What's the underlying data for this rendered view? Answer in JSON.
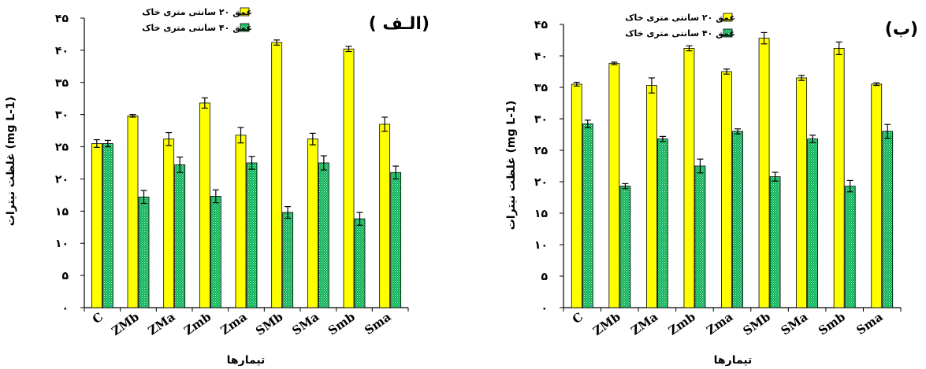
{
  "chart_data": [
    {
      "type": "bar",
      "title": "( الـف)",
      "xlabel": "تیمارها",
      "ylabel": "غلظت نیترات (mg L-1)",
      "ylim": [
        0,
        45
      ],
      "yticks": [
        "۰",
        "۵",
        "۱۰",
        "۱۵",
        "۲۰",
        "۲۵",
        "۳۰",
        "۳۵",
        "۴۰",
        "۴۵"
      ],
      "grid": false,
      "legend_position": "top",
      "categories": [
        "C",
        "ZMb",
        "ZMa",
        "Zmb",
        "Zma",
        "SMb",
        "SMa",
        "Smb",
        "Sma"
      ],
      "series": [
        {
          "name": "عمق ۲۰ سانتی متری خاک",
          "color": "#ffff00",
          "values": [
            25.5,
            29.8,
            26.2,
            31.8,
            26.8,
            41.2,
            26.2,
            40.2,
            28.5
          ],
          "errors": [
            0.6,
            0.2,
            1.0,
            0.8,
            1.2,
            0.4,
            0.9,
            0.4,
            1.1
          ]
        },
        {
          "name": "عمق ۴۰ سانتی متری خاک",
          "color": "#00b050",
          "values": [
            25.5,
            17.2,
            22.2,
            17.3,
            22.5,
            14.8,
            22.5,
            13.8,
            21.0
          ],
          "errors": [
            0.5,
            1.0,
            1.2,
            1.0,
            1.0,
            0.9,
            1.1,
            1.0,
            1.0
          ]
        }
      ]
    },
    {
      "type": "bar",
      "title": "(ب)",
      "xlabel": "تیمارها",
      "ylabel": "غلظت نیترات (mg L-1)",
      "ylim": [
        0,
        45
      ],
      "yticks": [
        "۰",
        "۵",
        "۱۰",
        "۱۵",
        "۲۰",
        "۲۵",
        "۳۰",
        "۳۵",
        "۴۰",
        "۴۵"
      ],
      "grid": false,
      "legend_position": "top",
      "categories": [
        "C",
        "ZMb",
        "ZMa",
        "Zmb",
        "Zma",
        "SMb",
        "SMa",
        "Smb",
        "Sma"
      ],
      "series": [
        {
          "name": "عمق ۲۰ سانتی متری خاک",
          "color": "#ffff00",
          "values": [
            35.5,
            38.8,
            35.3,
            41.2,
            37.5,
            42.8,
            36.5,
            41.2,
            35.5
          ],
          "errors": [
            0.3,
            0.2,
            1.2,
            0.4,
            0.4,
            0.9,
            0.4,
            1.0,
            0.2
          ]
        },
        {
          "name": "عمق ۴۰ سانتی متری خاک",
          "color": "#00b050",
          "values": [
            29.2,
            19.3,
            26.8,
            22.5,
            28.0,
            20.8,
            26.8,
            19.3,
            28.0
          ],
          "errors": [
            0.6,
            0.4,
            0.4,
            1.1,
            0.4,
            0.7,
            0.6,
            0.9,
            1.1
          ]
        }
      ]
    }
  ]
}
